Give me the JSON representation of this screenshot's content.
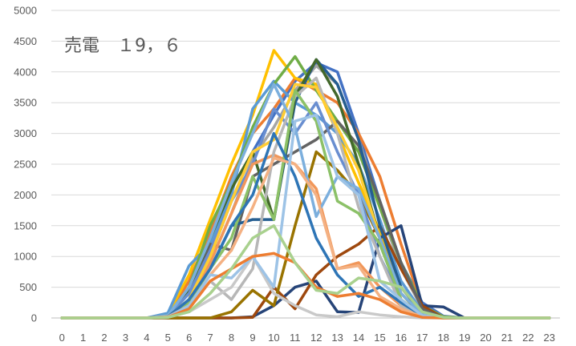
{
  "chart_data": {
    "type": "line",
    "title": "売電　１9，６",
    "xlabel": "",
    "ylabel": "",
    "ylim": [
      0,
      5000
    ],
    "yticks": [
      0,
      500,
      1000,
      1500,
      2000,
      2500,
      3000,
      3500,
      4000,
      4500,
      5000
    ],
    "categories": [
      "0",
      "1",
      "2",
      "3",
      "4",
      "5",
      "6",
      "7",
      "8",
      "9",
      "10",
      "11",
      "12",
      "13",
      "14",
      "15",
      "16",
      "17",
      "18",
      "19",
      "20",
      "21",
      "22",
      "23"
    ],
    "grid": true,
    "legend": "none",
    "series": [
      {
        "color": "#4472c4",
        "values": [
          0,
          0,
          0,
          0,
          0,
          30,
          400,
          1000,
          1900,
          2700,
          3300,
          3850,
          4150,
          4000,
          3000,
          1900,
          900,
          250,
          30,
          0,
          0,
          0,
          0,
          0
        ]
      },
      {
        "color": "#ed7d31",
        "values": [
          0,
          0,
          0,
          0,
          0,
          50,
          600,
          1400,
          2300,
          3000,
          3400,
          3900,
          3700,
          3500,
          3000,
          2300,
          1200,
          200,
          20,
          0,
          0,
          0,
          0,
          0
        ]
      },
      {
        "color": "#a5a5a5",
        "values": [
          0,
          0,
          0,
          0,
          0,
          20,
          300,
          900,
          1700,
          2600,
          3100,
          3700,
          4100,
          3800,
          2900,
          1800,
          800,
          150,
          10,
          0,
          0,
          0,
          0,
          0
        ]
      },
      {
        "color": "#ffc000",
        "values": [
          0,
          0,
          0,
          0,
          0,
          60,
          700,
          1600,
          2500,
          3300,
          4350,
          3900,
          3800,
          3000,
          2200,
          1400,
          500,
          80,
          0,
          0,
          0,
          0,
          0,
          0
        ]
      },
      {
        "color": "#5b9bd5",
        "values": [
          0,
          0,
          0,
          0,
          0,
          80,
          850,
          1200,
          2000,
          3400,
          3850,
          3500,
          3300,
          3000,
          2500,
          1600,
          600,
          100,
          0,
          0,
          0,
          0,
          0,
          0
        ]
      },
      {
        "color": "#70ad47",
        "values": [
          0,
          0,
          0,
          0,
          0,
          40,
          500,
          1500,
          2200,
          3100,
          3800,
          4250,
          3700,
          3200,
          2700,
          1800,
          900,
          200,
          20,
          0,
          0,
          0,
          0,
          0
        ]
      },
      {
        "color": "#264478",
        "values": [
          0,
          0,
          0,
          0,
          0,
          0,
          0,
          0,
          0,
          20,
          200,
          500,
          600,
          100,
          90,
          1300,
          1500,
          200,
          180,
          0,
          0,
          0,
          0,
          0
        ]
      },
      {
        "color": "#9e480e",
        "values": [
          0,
          0,
          0,
          0,
          0,
          0,
          0,
          0,
          0,
          10,
          500,
          150,
          700,
          1000,
          1200,
          1500,
          800,
          200,
          0,
          0,
          0,
          0,
          0,
          0
        ]
      },
      {
        "color": "#636363",
        "values": [
          0,
          0,
          0,
          0,
          0,
          20,
          300,
          1200,
          1100,
          2300,
          2500,
          2700,
          2900,
          3200,
          2800,
          1900,
          900,
          150,
          0,
          0,
          0,
          0,
          0,
          0
        ]
      },
      {
        "color": "#997300",
        "values": [
          0,
          0,
          0,
          0,
          0,
          0,
          0,
          0,
          100,
          450,
          200,
          1500,
          2700,
          2400,
          2000,
          1300,
          300,
          50,
          0,
          0,
          0,
          0,
          0,
          0
        ]
      },
      {
        "color": "#255e91",
        "values": [
          0,
          0,
          0,
          0,
          0,
          20,
          300,
          800,
          1500,
          1600,
          1600,
          3500,
          4200,
          3800,
          2900,
          1500,
          500,
          80,
          0,
          0,
          0,
          0,
          0,
          0
        ]
      },
      {
        "color": "#43682b",
        "values": [
          0,
          0,
          0,
          0,
          0,
          30,
          450,
          1300,
          2100,
          2700,
          1600,
          3600,
          4200,
          3600,
          2500,
          1300,
          400,
          50,
          0,
          0,
          0,
          0,
          0,
          0
        ]
      },
      {
        "color": "#698ed0",
        "values": [
          0,
          0,
          0,
          0,
          0,
          30,
          400,
          1100,
          1900,
          2500,
          3400,
          3000,
          3500,
          2700,
          2000,
          1000,
          300,
          30,
          0,
          0,
          0,
          0,
          0,
          0
        ]
      },
      {
        "color": "#f1975a",
        "values": [
          0,
          0,
          0,
          0,
          0,
          20,
          250,
          900,
          1700,
          2500,
          2650,
          2500,
          2100,
          800,
          900,
          500,
          200,
          20,
          0,
          0,
          0,
          0,
          0,
          0
        ]
      },
      {
        "color": "#b7b7b7",
        "values": [
          0,
          0,
          0,
          0,
          0,
          10,
          200,
          600,
          300,
          800,
          2700,
          3600,
          3900,
          3000,
          1800,
          1000,
          200,
          20,
          0,
          0,
          0,
          0,
          0,
          0
        ]
      },
      {
        "color": "#ffcd33",
        "values": [
          0,
          0,
          0,
          0,
          0,
          20,
          300,
          1000,
          1900,
          2700,
          2900,
          3800,
          3750,
          3100,
          2400,
          1300,
          300,
          40,
          0,
          0,
          0,
          0,
          0,
          0
        ]
      },
      {
        "color": "#7cafdd",
        "values": [
          0,
          0,
          0,
          0,
          0,
          40,
          500,
          1300,
          2200,
          3000,
          3800,
          3100,
          1650,
          2300,
          2100,
          1300,
          400,
          60,
          0,
          0,
          0,
          0,
          0,
          0
        ]
      },
      {
        "color": "#8cc168",
        "values": [
          0,
          0,
          0,
          0,
          0,
          20,
          250,
          800,
          1300,
          2300,
          1600,
          3700,
          3200,
          1900,
          1700,
          1200,
          300,
          30,
          0,
          0,
          0,
          0,
          0,
          0
        ]
      },
      {
        "color": "#2e75b6",
        "values": [
          0,
          0,
          0,
          0,
          0,
          20,
          300,
          800,
          1500,
          2000,
          3000,
          2300,
          1300,
          700,
          350,
          500,
          250,
          40,
          0,
          0,
          0,
          0,
          0,
          0
        ]
      },
      {
        "color": "#f4b183",
        "values": [
          0,
          0,
          0,
          0,
          0,
          20,
          200,
          700,
          1100,
          1800,
          2600,
          2500,
          2000,
          800,
          850,
          350,
          150,
          20,
          0,
          0,
          0,
          0,
          0,
          0
        ]
      },
      {
        "color": "#c9c9c9",
        "values": [
          0,
          0,
          0,
          0,
          0,
          10,
          100,
          300,
          500,
          1000,
          400,
          200,
          50,
          20,
          100,
          50,
          20,
          0,
          0,
          0,
          0,
          0,
          0,
          0
        ]
      },
      {
        "color": "#9dc3e6",
        "values": [
          0,
          0,
          0,
          0,
          0,
          10,
          200,
          700,
          650,
          1000,
          500,
          3200,
          3300,
          2300,
          2000,
          600,
          300,
          40,
          0,
          0,
          0,
          0,
          0,
          0
        ]
      },
      {
        "color": "#ed7d31",
        "values": [
          0,
          0,
          0,
          0,
          0,
          10,
          150,
          600,
          800,
          1000,
          1050,
          900,
          500,
          350,
          400,
          300,
          100,
          10,
          0,
          0,
          0,
          0,
          0,
          0
        ]
      },
      {
        "color": "#a9d18e",
        "values": [
          0,
          0,
          0,
          0,
          0,
          10,
          100,
          400,
          800,
          1300,
          1500,
          900,
          450,
          400,
          650,
          600,
          500,
          100,
          10,
          0,
          0,
          0,
          0,
          0
        ]
      }
    ]
  }
}
